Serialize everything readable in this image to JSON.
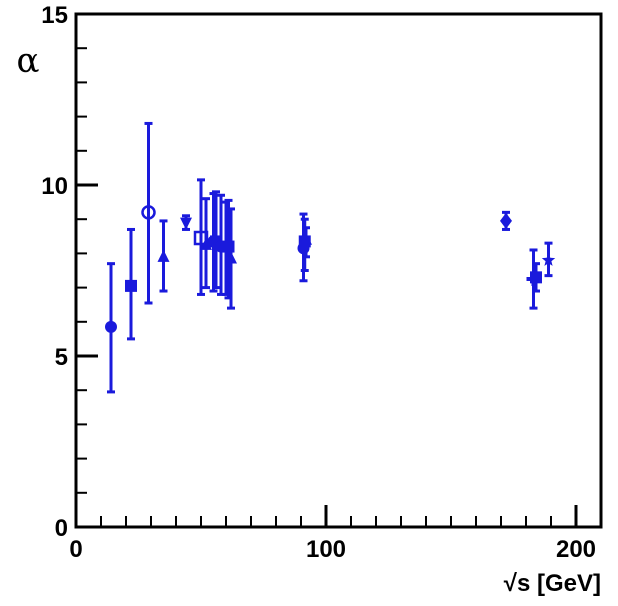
{
  "chart_data": {
    "type": "scatter",
    "title": "",
    "xlabel": "√s [GeV]",
    "ylabel": "α",
    "xlim": [
      0,
      210
    ],
    "ylim": [
      0,
      15
    ],
    "xticks": [
      0,
      100,
      200
    ],
    "yticks": [
      0,
      5,
      10,
      15
    ],
    "grid": false,
    "legend": "none",
    "color": "#1a1adc",
    "points": [
      {
        "x": 14,
        "y": 5.85,
        "ylo": 3.95,
        "yhi": 7.7,
        "marker": "circle"
      },
      {
        "x": 22,
        "y": 7.05,
        "ylo": 5.5,
        "yhi": 8.7,
        "marker": "square"
      },
      {
        "x": 29,
        "y": 9.2,
        "ylo": 6.55,
        "yhi": 11.8,
        "marker": "circle-open"
      },
      {
        "x": 35,
        "y": 7.9,
        "ylo": 6.9,
        "yhi": 8.95,
        "marker": "triangle-up"
      },
      {
        "x": 44,
        "y": 8.9,
        "ylo": 8.7,
        "yhi": 9.1,
        "marker": "triangle-down"
      },
      {
        "x": 50,
        "y": 8.45,
        "ylo": 6.8,
        "yhi": 10.15,
        "marker": "square-open"
      },
      {
        "x": 52,
        "y": 8.25,
        "ylo": 7.0,
        "yhi": 9.6,
        "marker": "triangle-up"
      },
      {
        "x": 55,
        "y": 8.35,
        "ylo": 6.9,
        "yhi": 9.75,
        "marker": "circle"
      },
      {
        "x": 56,
        "y": 8.35,
        "ylo": 7.0,
        "yhi": 9.8,
        "marker": "square"
      },
      {
        "x": 58,
        "y": 8.2,
        "ylo": 6.8,
        "yhi": 9.7,
        "marker": "circle"
      },
      {
        "x": 60,
        "y": 8.15,
        "ylo": 6.8,
        "yhi": 9.5,
        "marker": "triangle-down"
      },
      {
        "x": 61,
        "y": 8.2,
        "ylo": 6.7,
        "yhi": 9.55,
        "marker": "square"
      },
      {
        "x": 62,
        "y": 7.85,
        "ylo": 6.4,
        "yhi": 9.3,
        "marker": "triangle-up"
      },
      {
        "x": 91,
        "y": 8.15,
        "ylo": 7.2,
        "yhi": 9.15,
        "marker": "circle"
      },
      {
        "x": 91.5,
        "y": 8.35,
        "ylo": 7.5,
        "yhi": 9.0,
        "marker": "square"
      },
      {
        "x": 92,
        "y": 8.4,
        "ylo": 7.9,
        "yhi": 8.75,
        "marker": "triangle-up"
      },
      {
        "x": 172,
        "y": 8.95,
        "ylo": 8.7,
        "yhi": 9.2,
        "marker": "diamond"
      },
      {
        "x": 183,
        "y": 7.25,
        "ylo": 6.4,
        "yhi": 8.1,
        "marker": "cross"
      },
      {
        "x": 184,
        "y": 7.3,
        "ylo": 6.9,
        "yhi": 7.7,
        "marker": "square"
      },
      {
        "x": 189,
        "y": 7.8,
        "ylo": 7.35,
        "yhi": 8.3,
        "marker": "star"
      }
    ]
  }
}
